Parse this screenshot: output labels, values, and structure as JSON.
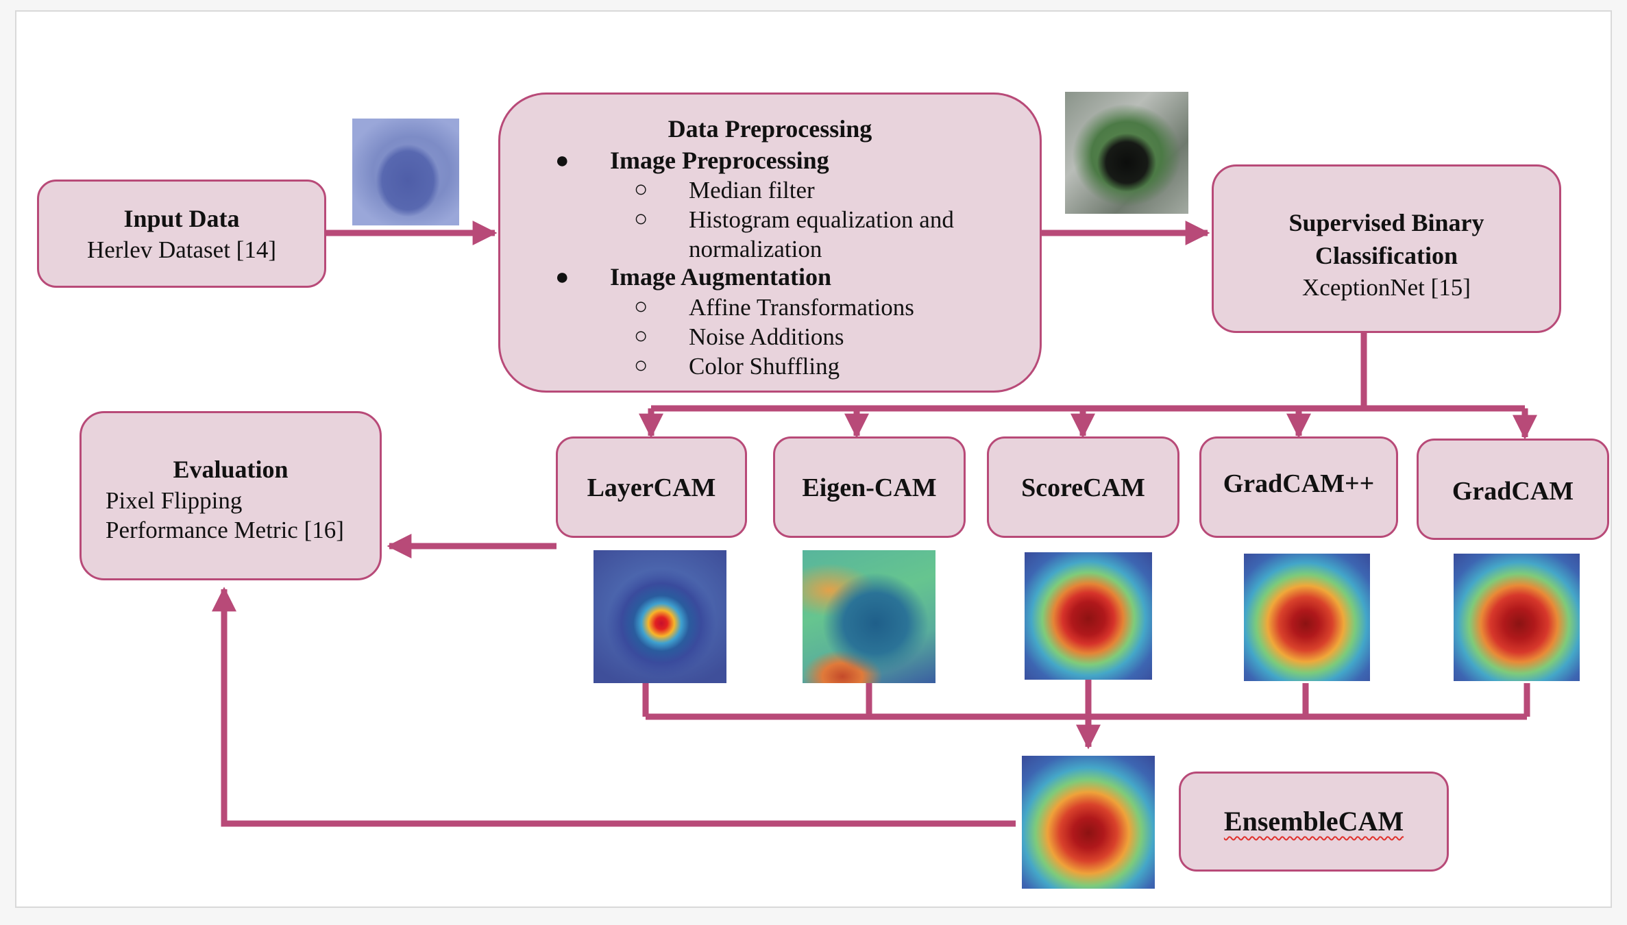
{
  "colors": {
    "box_fill": "#e8d3dc",
    "box_border": "#b84a78",
    "arrow": "#b84a78"
  },
  "input": {
    "title": "Input Data",
    "subtitle": "Herlev Dataset [14]"
  },
  "preprocessing": {
    "title": "Data Preprocessing",
    "sections": [
      {
        "heading": "Image Preprocessing",
        "items": [
          "Median filter",
          "Histogram equalization and",
          "normalization"
        ]
      },
      {
        "heading": "Image Augmentation",
        "items": [
          "Affine Transformations",
          "Noise Additions",
          "Color Shuffling"
        ]
      }
    ]
  },
  "classifier": {
    "title_line1": "Supervised Binary",
    "title_line2": "Classification",
    "subtitle": "XceptionNet [15]"
  },
  "cams": [
    {
      "label": "LayerCAM"
    },
    {
      "label": "Eigen-CAM"
    },
    {
      "label": "ScoreCAM"
    },
    {
      "label": "GradCAM++"
    },
    {
      "label": "GradCAM"
    }
  ],
  "evaluation": {
    "title": "Evaluation",
    "line1": "Pixel Flipping",
    "line2": "Performance Metric [16]"
  },
  "ensemble": {
    "label": "EnsembleCAM"
  }
}
